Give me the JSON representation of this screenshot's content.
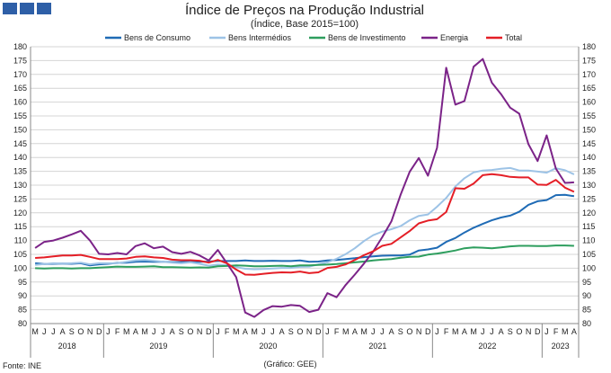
{
  "header": {
    "logo": "ine-logo-squares",
    "title": "Índice de Preços na Produção Industrial",
    "subtitle": "(Índice, Base 2015=100)"
  },
  "footer": {
    "source": "Fonte: INE",
    "credit": "(Gráfico: GEE)"
  },
  "chart_data": {
    "type": "line",
    "ylim": [
      80,
      180
    ],
    "ytick_step": 5,
    "grid": "horizontal",
    "legend_position": "top",
    "x": [
      "2018-05",
      "2018-06",
      "2018-07",
      "2018-08",
      "2018-09",
      "2018-10",
      "2018-11",
      "2018-12",
      "2019-01",
      "2019-02",
      "2019-03",
      "2019-04",
      "2019-05",
      "2019-06",
      "2019-07",
      "2019-08",
      "2019-09",
      "2019-10",
      "2019-11",
      "2019-12",
      "2020-01",
      "2020-02",
      "2020-03",
      "2020-04",
      "2020-05",
      "2020-06",
      "2020-07",
      "2020-08",
      "2020-09",
      "2020-10",
      "2020-11",
      "2020-12",
      "2021-01",
      "2021-02",
      "2021-03",
      "2021-04",
      "2021-05",
      "2021-06",
      "2021-07",
      "2021-08",
      "2021-09",
      "2021-10",
      "2021-11",
      "2021-12",
      "2022-01",
      "2022-02",
      "2022-03",
      "2022-04",
      "2022-05",
      "2022-06",
      "2022-07",
      "2022-08",
      "2022-09",
      "2022-10",
      "2022-11",
      "2022-12",
      "2023-01",
      "2023-02",
      "2023-03",
      "2023-04"
    ],
    "month_labels": [
      "M",
      "J",
      "J",
      "A",
      "S",
      "O",
      "N",
      "D",
      "J",
      "F",
      "M",
      "A",
      "M",
      "J",
      "J",
      "A",
      "S",
      "O",
      "N",
      "D",
      "J",
      "F",
      "M",
      "A",
      "M",
      "J",
      "J",
      "A",
      "S",
      "O",
      "N",
      "D",
      "J",
      "F",
      "M",
      "A",
      "M",
      "J",
      "J",
      "A",
      "S",
      "O",
      "N",
      "D",
      "J",
      "F",
      "M",
      "A",
      "M",
      "J",
      "J",
      "A",
      "S",
      "O",
      "N",
      "D",
      "J",
      "F",
      "M",
      "A"
    ],
    "year_labels": [
      {
        "label": "2018",
        "start": 0,
        "end": 7
      },
      {
        "label": "2019",
        "start": 8,
        "end": 19
      },
      {
        "label": "2020",
        "start": 20,
        "end": 31
      },
      {
        "label": "2021",
        "start": 32,
        "end": 43
      },
      {
        "label": "2022",
        "start": 44,
        "end": 55
      },
      {
        "label": "2023",
        "start": 56,
        "end": 59
      }
    ],
    "series": [
      {
        "name": "Bens de Consumo",
        "color": "#1f6bb5",
        "values": [
          101.8,
          101.5,
          101.6,
          101.7,
          101.6,
          101.8,
          101.0,
          101.4,
          101.6,
          101.9,
          102.0,
          102.3,
          102.4,
          102.3,
          102.3,
          102.2,
          102.2,
          102.3,
          102.3,
          102.4,
          102.6,
          102.6,
          102.6,
          102.8,
          102.6,
          102.6,
          102.7,
          102.6,
          102.6,
          102.8,
          102.3,
          102.4,
          102.8,
          103.0,
          103.3,
          103.6,
          104.0,
          104.3,
          104.5,
          104.6,
          104.6,
          104.9,
          106.4,
          106.8,
          107.4,
          109.5,
          110.9,
          112.9,
          114.6,
          116.0,
          117.3,
          118.3,
          119.0,
          120.4,
          122.9,
          124.2,
          124.6,
          126.4,
          126.5,
          126.0
        ]
      },
      {
        "name": "Bens Intermédios",
        "color": "#9dc3e6",
        "values": [
          101.2,
          101.5,
          101.8,
          101.7,
          101.8,
          102.0,
          101.4,
          101.8,
          101.8,
          101.8,
          102.3,
          102.8,
          103.0,
          102.7,
          102.3,
          102.0,
          101.8,
          102.1,
          101.6,
          100.9,
          101.3,
          101.1,
          100.4,
          99.8,
          99.6,
          99.7,
          99.9,
          100.1,
          100.1,
          100.5,
          100.6,
          101.4,
          102.1,
          103.4,
          105.1,
          107.2,
          109.8,
          111.9,
          113.2,
          114.1,
          115.2,
          117.3,
          118.9,
          119.4,
          122.2,
          125.4,
          129.5,
          132.5,
          134.6,
          135.3,
          135.5,
          135.9,
          136.2,
          135.3,
          135.3,
          134.9,
          134.5,
          136.1,
          135.4,
          133.9
        ]
      },
      {
        "name": "Bens de Investimento",
        "color": "#2e9e5e",
        "values": [
          100.0,
          99.9,
          100.0,
          100.0,
          99.9,
          100.0,
          100.0,
          100.2,
          100.4,
          100.6,
          100.5,
          100.5,
          100.6,
          100.7,
          100.4,
          100.4,
          100.3,
          100.2,
          100.3,
          100.2,
          100.7,
          100.8,
          101.0,
          100.9,
          100.7,
          100.7,
          100.8,
          100.9,
          100.7,
          101.0,
          101.0,
          101.2,
          101.3,
          101.5,
          101.8,
          102.1,
          102.4,
          102.8,
          103.1,
          103.3,
          103.8,
          104.1,
          104.2,
          104.9,
          105.3,
          105.8,
          106.4,
          107.2,
          107.5,
          107.4,
          107.2,
          107.5,
          107.9,
          108.1,
          108.1,
          108.0,
          108.0,
          108.2,
          108.2,
          108.1
        ]
      },
      {
        "name": "Energia",
        "color": "#7b2388",
        "values": [
          107.3,
          109.5,
          110.0,
          111.0,
          112.2,
          113.5,
          110.0,
          105.2,
          105.0,
          105.5,
          105.0,
          108.0,
          109.0,
          107.2,
          107.8,
          105.8,
          105.2,
          105.9,
          104.6,
          102.8,
          106.6,
          101.8,
          96.8,
          84.0,
          82.4,
          84.9,
          86.3,
          86.1,
          86.7,
          86.4,
          84.2,
          85.0,
          91.0,
          89.5,
          94.0,
          97.7,
          101.7,
          106.0,
          111.2,
          116.9,
          126.5,
          134.8,
          139.8,
          133.4,
          143.5,
          172.4,
          159.1,
          160.4,
          172.8,
          175.6,
          167.0,
          162.9,
          158.0,
          155.8,
          144.8,
          138.7,
          148.0,
          136.0,
          130.8,
          131.0
        ]
      },
      {
        "name": "Total",
        "color": "#e41e26",
        "values": [
          103.7,
          103.9,
          104.3,
          104.6,
          104.6,
          104.8,
          104.1,
          103.3,
          103.3,
          103.3,
          103.5,
          104.1,
          104.3,
          103.9,
          103.7,
          103.1,
          102.9,
          102.9,
          102.7,
          102.0,
          103.0,
          101.8,
          99.5,
          97.7,
          97.6,
          98.0,
          98.3,
          98.5,
          98.4,
          98.8,
          98.2,
          98.5,
          100.1,
          100.5,
          101.4,
          103.0,
          104.7,
          106.1,
          108.1,
          108.8,
          111.1,
          113.4,
          116.2,
          117.2,
          117.7,
          120.3,
          128.9,
          128.7,
          130.6,
          133.6,
          134.0,
          133.6,
          133.0,
          132.8,
          132.8,
          130.2,
          130.1,
          131.9,
          129.1,
          127.6
        ]
      }
    ]
  }
}
